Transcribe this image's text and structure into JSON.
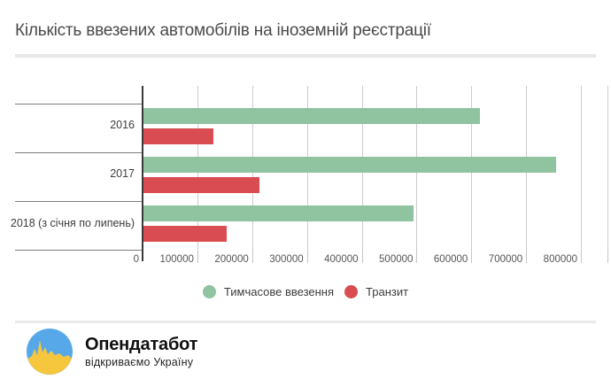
{
  "title": "Кількість ввезених автомобілів на іноземній реєстрації",
  "chart_data": {
    "type": "bar",
    "orientation": "horizontal",
    "title": "Кількість ввезених автомобілів на іноземній реєстрації",
    "categories": [
      "2016",
      "2017",
      "2018 (з січня по липень)"
    ],
    "series": [
      {
        "name": "Тимчасове ввезення",
        "color": "#90c3a0",
        "values": [
          615000,
          755000,
          494000
        ]
      },
      {
        "name": "Транзит",
        "color": "#d94d52",
        "values": [
          130000,
          213000,
          154000
        ]
      }
    ],
    "xlim": [
      0,
      850000
    ],
    "x_ticks": [
      0,
      100000,
      200000,
      300000,
      400000,
      500000,
      600000,
      700000,
      800000
    ],
    "x_tick_labels": [
      "0",
      "100000",
      "200000",
      "300000",
      "400000",
      "500000",
      "600000",
      "700000",
      "800000"
    ],
    "grid": true,
    "grid_color": "#cccccc",
    "axis_color": "#3a3a3a",
    "legend_position": "bottom"
  },
  "footer": {
    "brand": "Опендатабот",
    "tagline": "відкриваємо Україну",
    "logo_blue": "#57a8e8",
    "logo_yellow": "#f6c63d"
  }
}
